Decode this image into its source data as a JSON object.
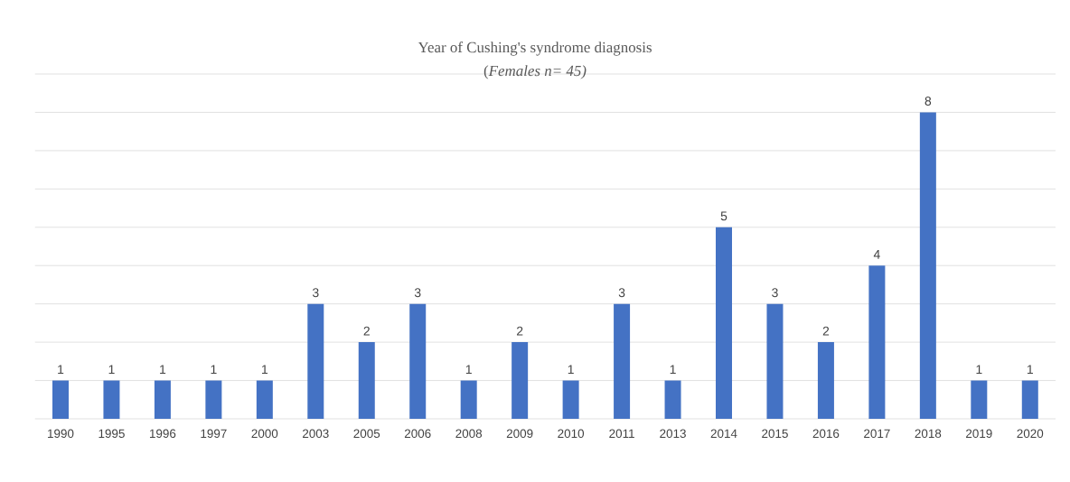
{
  "chart_data": {
    "type": "bar",
    "title": "Year of Cushing's syndrome diagnosis",
    "subtitle": "(*Females n= 45)*",
    "categories": [
      "1990",
      "1995",
      "1996",
      "1997",
      "2000",
      "2003",
      "2005",
      "2006",
      "2008",
      "2009",
      "2010",
      "2011",
      "2013",
      "2014",
      "2015",
      "2016",
      "2017",
      "2018",
      "2019",
      "2020"
    ],
    "values": [
      1,
      1,
      1,
      1,
      1,
      3,
      2,
      3,
      1,
      2,
      1,
      3,
      1,
      5,
      3,
      2,
      4,
      8,
      1,
      1
    ],
    "color": "#4472c4",
    "ylim": [
      0,
      9
    ],
    "yticks": [
      {
        "value": 0,
        "label": null
      },
      {
        "value": 1,
        "label": null
      },
      {
        "value": 2,
        "label": null
      },
      {
        "value": 3,
        "label": null
      },
      {
        "value": 4,
        "label": null
      },
      {
        "value": 5,
        "label": null
      },
      {
        "value": 6,
        "label": null
      },
      {
        "value": 7,
        "label": null
      },
      {
        "value": 8,
        "label": null
      },
      {
        "value": 9,
        "label": null
      }
    ],
    "grid": "y",
    "tick_labels": "x",
    "data_labels": true
  }
}
